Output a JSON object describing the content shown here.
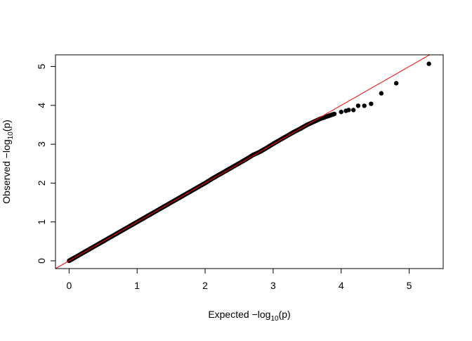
{
  "chart_data": {
    "type": "scatter",
    "title": "",
    "xlabel": {
      "prefix": "Expected  −log",
      "sub": "10",
      "suffix": "(p)"
    },
    "ylabel": {
      "prefix": "Observed  −log",
      "sub": "10",
      "suffix": "(p)"
    },
    "xlim": [
      -0.2,
      5.5
    ],
    "ylim": [
      -0.2,
      5.3
    ],
    "xticks": [
      "0",
      "1",
      "2",
      "3",
      "4",
      "5"
    ],
    "yticks": [
      "0",
      "1",
      "2",
      "3",
      "4",
      "5"
    ],
    "grid": false,
    "reference_line": {
      "slope": 1,
      "intercept": 0,
      "color": "#ff0000"
    },
    "point_color": "#000000",
    "points": [
      [
        0.0,
        0.0
      ],
      [
        0.05,
        0.05
      ],
      [
        0.1,
        0.1
      ],
      [
        0.2,
        0.2
      ],
      [
        0.3,
        0.3
      ],
      [
        0.4,
        0.4
      ],
      [
        0.5,
        0.5
      ],
      [
        0.6,
        0.6
      ],
      [
        0.7,
        0.7
      ],
      [
        0.8,
        0.8
      ],
      [
        0.9,
        0.9
      ],
      [
        1.0,
        1.0
      ],
      [
        1.1,
        1.1
      ],
      [
        1.2,
        1.2
      ],
      [
        1.3,
        1.3
      ],
      [
        1.4,
        1.4
      ],
      [
        1.5,
        1.5
      ],
      [
        1.6,
        1.6
      ],
      [
        1.7,
        1.7
      ],
      [
        1.8,
        1.8
      ],
      [
        1.9,
        1.9
      ],
      [
        2.0,
        2.0
      ],
      [
        2.1,
        2.11
      ],
      [
        2.2,
        2.21
      ],
      [
        2.3,
        2.31
      ],
      [
        2.4,
        2.41
      ],
      [
        2.5,
        2.51
      ],
      [
        2.6,
        2.61
      ],
      [
        2.7,
        2.72
      ],
      [
        2.8,
        2.8
      ],
      [
        2.9,
        2.9
      ],
      [
        3.0,
        3.01
      ],
      [
        3.1,
        3.11
      ],
      [
        3.2,
        3.21
      ],
      [
        3.3,
        3.31
      ],
      [
        3.4,
        3.4
      ],
      [
        3.5,
        3.5
      ],
      [
        3.6,
        3.58
      ],
      [
        3.7,
        3.66
      ],
      [
        3.8,
        3.72
      ],
      [
        3.9,
        3.78
      ],
      [
        4.0,
        3.83
      ],
      [
        4.07,
        3.86
      ],
      [
        4.11,
        3.88
      ],
      [
        4.18,
        3.88
      ],
      [
        4.25,
        3.99
      ],
      [
        4.34,
        3.99
      ],
      [
        4.44,
        4.04
      ],
      [
        4.59,
        4.31
      ],
      [
        4.81,
        4.57
      ],
      [
        5.29,
        5.07
      ]
    ]
  }
}
